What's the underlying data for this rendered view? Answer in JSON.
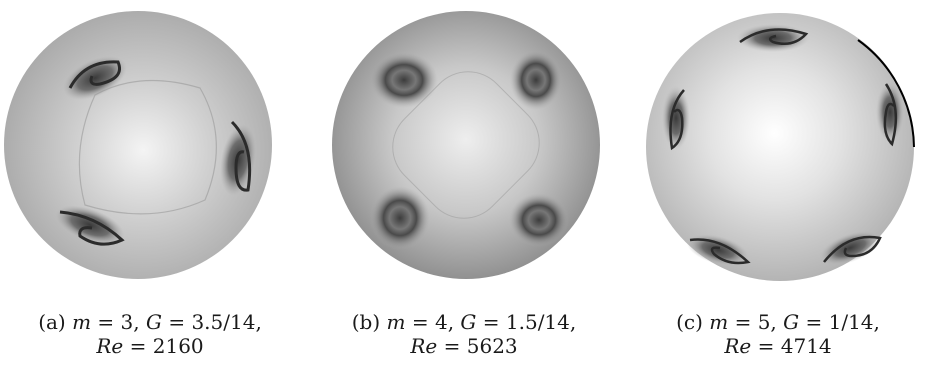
{
  "panels": [
    {
      "tag": "(a)",
      "m_label": "m",
      "m_value": "= 3,",
      "g_label": "G",
      "g_value": "= 3.5/14,",
      "re_label": "Re",
      "re_value": "= 2160"
    },
    {
      "tag": "(b)",
      "m_label": "m",
      "m_value": "= 4,",
      "g_label": "G",
      "g_value": "= 1.5/14,",
      "re_label": "Re",
      "re_value": "= 5623"
    },
    {
      "tag": "(c)",
      "m_label": "m",
      "m_value": "= 5,",
      "g_label": "G",
      "g_value": "= 1/14,",
      "re_label": "Re",
      "re_value": "= 4714"
    }
  ]
}
